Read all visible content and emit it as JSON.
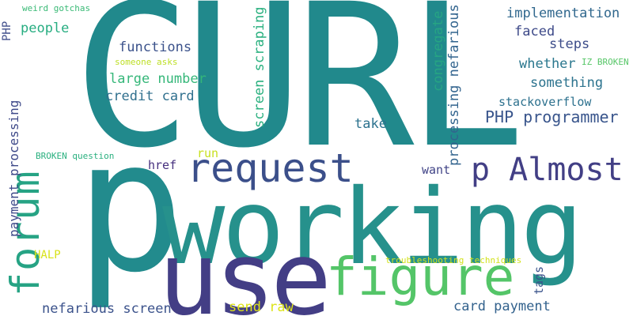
{
  "cloud": {
    "words": [
      {
        "text": "CURL",
        "color": "#21898c"
      },
      {
        "text": "p",
        "color": "#228b8d"
      },
      {
        "text": "working",
        "color": "#26918c"
      },
      {
        "text": "use",
        "color": "#433e85"
      },
      {
        "text": "forum",
        "color": "#26a384"
      },
      {
        "text": "request",
        "color": "#3b4f8a"
      },
      {
        "text": "figure",
        "color": "#54c568"
      },
      {
        "text": "p Almost",
        "color": "#423f85"
      },
      {
        "text": "PHP programmer",
        "color": "#39558c"
      },
      {
        "text": "weird gotchas",
        "color": "#3aba76"
      },
      {
        "text": "PHP",
        "color": "#3e4c8a"
      },
      {
        "text": "people",
        "color": "#27ad81"
      },
      {
        "text": "functions",
        "color": "#3b528b"
      },
      {
        "text": "someone asks",
        "color": "#bddf26"
      },
      {
        "text": "large number",
        "color": "#35b779"
      },
      {
        "text": "credit card",
        "color": "#30708e"
      },
      {
        "text": "screen scraping",
        "color": "#2ab07f"
      },
      {
        "text": "congregate",
        "color": "#26a583"
      },
      {
        "text": "processing nefarious",
        "color": "#32648e"
      },
      {
        "text": "implementation",
        "color": "#31688e"
      },
      {
        "text": "faced",
        "color": "#3e4a89"
      },
      {
        "text": "steps",
        "color": "#3d4d8a"
      },
      {
        "text": "whether",
        "color": "#2a778e"
      },
      {
        "text": "IZ BROKEN",
        "color": "#56c667"
      },
      {
        "text": "something",
        "color": "#2c738e"
      },
      {
        "text": "stackoverflow",
        "color": "#2d718e"
      },
      {
        "text": "take",
        "color": "#2c728e"
      },
      {
        "text": "payment processing",
        "color": "#3e4989"
      },
      {
        "text": "BROKEN question",
        "color": "#2ab07f"
      },
      {
        "text": "run",
        "color": "#c8e020"
      },
      {
        "text": "href",
        "color": "#46307e"
      },
      {
        "text": "want",
        "color": "#414487"
      },
      {
        "text": "HALP",
        "color": "#d8e219"
      },
      {
        "text": "troubleshooting techniques",
        "color": "#d2e21b"
      },
      {
        "text": "tags",
        "color": "#3a538b"
      },
      {
        "text": "nefarious screen",
        "color": "#3b528b"
      },
      {
        "text": "send raw",
        "color": "#dde318"
      },
      {
        "text": "card payment",
        "color": "#33628d"
      }
    ]
  }
}
